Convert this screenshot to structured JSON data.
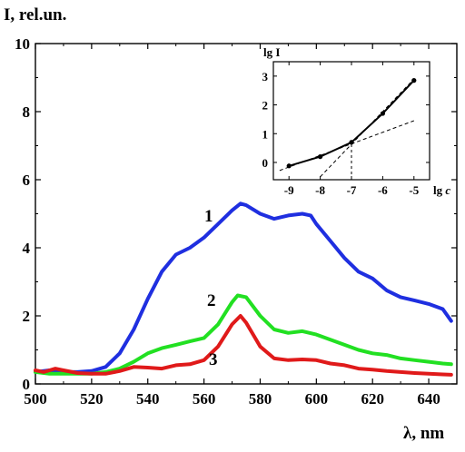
{
  "chart_data": [
    {
      "type": "line",
      "ylabel": "I, rel.un.",
      "xlabel": "λ, nm",
      "xlim": [
        500,
        650
      ],
      "ylim": [
        0,
        10
      ],
      "xticks": [
        "500",
        "520",
        "540",
        "560",
        "580",
        "600",
        "620",
        "640"
      ],
      "yticks": [
        "0",
        "2",
        "4",
        "6",
        "8",
        "10"
      ],
      "grid": false,
      "series": [
        {
          "name": "1",
          "color": "#1f2fe0",
          "x": [
            500,
            505,
            510,
            515,
            520,
            525,
            530,
            535,
            540,
            545,
            550,
            555,
            560,
            565,
            570,
            573,
            575,
            580,
            585,
            590,
            595,
            598,
            600,
            605,
            610,
            615,
            620,
            625,
            630,
            635,
            640,
            645,
            648
          ],
          "y": [
            0.35,
            0.4,
            0.35,
            0.35,
            0.38,
            0.5,
            0.9,
            1.6,
            2.5,
            3.3,
            3.8,
            4.0,
            4.3,
            4.7,
            5.1,
            5.3,
            5.25,
            5.0,
            4.85,
            4.95,
            5.0,
            4.95,
            4.7,
            4.2,
            3.7,
            3.3,
            3.1,
            2.75,
            2.55,
            2.45,
            2.35,
            2.2,
            1.85
          ]
        },
        {
          "name": "2",
          "color": "#22e022",
          "x": [
            500,
            505,
            510,
            515,
            520,
            525,
            530,
            535,
            540,
            545,
            550,
            555,
            560,
            565,
            570,
            572,
            575,
            580,
            585,
            590,
            595,
            600,
            605,
            610,
            615,
            620,
            625,
            630,
            635,
            640,
            645,
            648
          ],
          "y": [
            0.35,
            0.3,
            0.3,
            0.3,
            0.3,
            0.35,
            0.45,
            0.65,
            0.9,
            1.05,
            1.15,
            1.25,
            1.35,
            1.75,
            2.4,
            2.6,
            2.55,
            2.0,
            1.6,
            1.5,
            1.55,
            1.45,
            1.3,
            1.15,
            1.0,
            0.9,
            0.85,
            0.75,
            0.7,
            0.65,
            0.6,
            0.58
          ]
        },
        {
          "name": "3",
          "color": "#e01a1a",
          "x": [
            500,
            503,
            507,
            510,
            515,
            520,
            525,
            530,
            535,
            540,
            545,
            550,
            555,
            560,
            565,
            570,
            573,
            575,
            580,
            585,
            590,
            595,
            600,
            605,
            610,
            615,
            620,
            625,
            630,
            635,
            640,
            645,
            648
          ],
          "y": [
            0.4,
            0.35,
            0.45,
            0.4,
            0.32,
            0.3,
            0.3,
            0.38,
            0.5,
            0.48,
            0.45,
            0.55,
            0.58,
            0.7,
            1.1,
            1.75,
            2.0,
            1.8,
            1.1,
            0.75,
            0.7,
            0.72,
            0.7,
            0.6,
            0.55,
            0.45,
            0.42,
            0.38,
            0.35,
            0.32,
            0.3,
            0.28,
            0.27
          ]
        }
      ]
    },
    {
      "type": "line",
      "ylabel": "lg I",
      "xlabel": "lg c",
      "xlim": [
        -9.5,
        -4.5
      ],
      "ylim": [
        -0.6,
        3.5
      ],
      "xticks": [
        "-9",
        "-8",
        "-7",
        "-6",
        "-5"
      ],
      "yticks": [
        "0",
        "1",
        "2",
        "3"
      ],
      "grid": false,
      "series": [
        {
          "x": [
            -9,
            -8,
            -7,
            -6,
            -5
          ],
          "y": [
            -0.12,
            0.2,
            0.7,
            1.7,
            2.85
          ],
          "markers": true,
          "style": "solid",
          "color": "#000000"
        }
      ],
      "fit_lines": [
        {
          "x": [
            -9.3,
            -5.0
          ],
          "y": [
            -0.28,
            1.45
          ],
          "style": "dashed"
        },
        {
          "x": [
            -8.0,
            -5.0
          ],
          "y": [
            -0.5,
            2.9
          ],
          "style": "dashed"
        }
      ],
      "guides": [
        {
          "x": [
            -7,
            -7
          ],
          "y": [
            -0.6,
            0.7
          ],
          "style": "dashed"
        }
      ]
    }
  ]
}
